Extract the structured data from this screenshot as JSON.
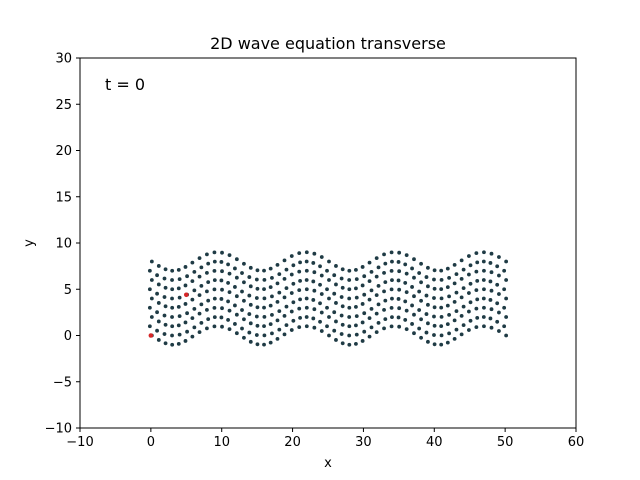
{
  "chart_data": {
    "type": "scatter",
    "title": "2D wave equation transverse",
    "xlabel": "x",
    "ylabel": "y",
    "xlim": [
      -10,
      60
    ],
    "ylim": [
      -10,
      30
    ],
    "xticks": [
      -10,
      0,
      10,
      20,
      30,
      40,
      50,
      60
    ],
    "yticks": [
      -10,
      -5,
      0,
      5,
      10,
      15,
      20,
      25,
      30
    ],
    "annotation": "t = 0",
    "grid": false,
    "series": [
      {
        "role": "lattice",
        "color": "#1f3b45",
        "grid_nx": 51,
        "grid_ny": 9,
        "x_step": 1,
        "y_step": 1,
        "wave_amplitude": 1,
        "wave_wavelength": 12.5
      },
      {
        "role": "highlighted",
        "color": "#d62728",
        "points": [
          [
            0,
            0
          ],
          [
            5,
            4.4
          ]
        ]
      }
    ]
  }
}
